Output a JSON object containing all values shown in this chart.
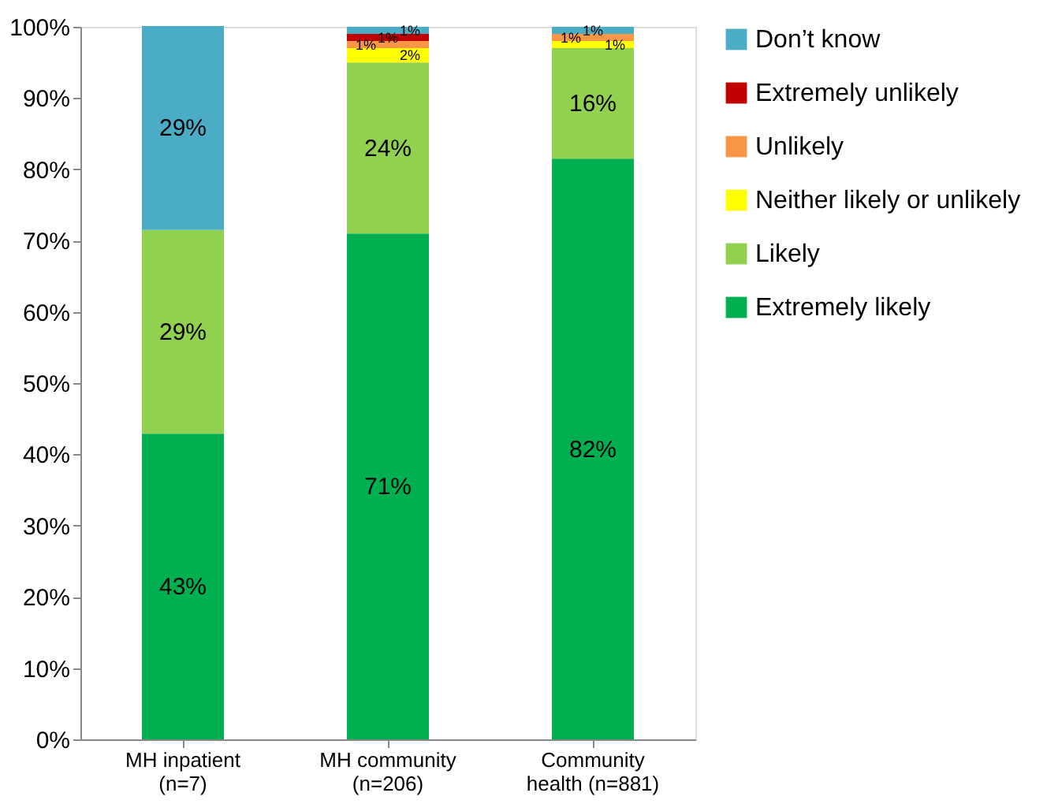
{
  "chart_data": {
    "type": "bar",
    "stacked": true,
    "legend": "right",
    "grid": false,
    "categories": [
      "MH inpatient\n(n=7)",
      "MH community\n(n=206)",
      "Community\nhealth (n=881)"
    ],
    "ylim": [
      0,
      100
    ],
    "yticks": [
      {
        "value": 0,
        "label": "0%"
      },
      {
        "value": 10,
        "label": "10%"
      },
      {
        "value": 20,
        "label": "20%"
      },
      {
        "value": 30,
        "label": "30%"
      },
      {
        "value": 40,
        "label": "40%"
      },
      {
        "value": 50,
        "label": "50%"
      },
      {
        "value": 60,
        "label": "60%"
      },
      {
        "value": 70,
        "label": "70%"
      },
      {
        "value": 80,
        "label": "80%"
      },
      {
        "value": 90,
        "label": "90%"
      },
      {
        "value": 100,
        "label": "100%"
      }
    ],
    "series": [
      {
        "name": "Extremely likely",
        "color": "#00b050",
        "values": [
          42.9,
          71,
          81.5
        ],
        "value_labels": [
          "43%",
          "71%",
          "82%"
        ]
      },
      {
        "name": "Likely",
        "color": "#92d050",
        "values": [
          28.6,
          24,
          15.5
        ],
        "value_labels": [
          "29%",
          "24%",
          "16%"
        ]
      },
      {
        "name": "Neither likely or unlikely",
        "color": "#ffff00",
        "values": [
          0,
          2,
          1
        ],
        "value_labels": [
          null,
          "2%",
          "1%"
        ]
      },
      {
        "name": "Unlikely",
        "color": "#f79646",
        "values": [
          0,
          1,
          1
        ],
        "value_labels": [
          null,
          "1%",
          "1%"
        ]
      },
      {
        "name": "Extremely unlikely",
        "color": "#c00000",
        "values": [
          0,
          1,
          0
        ],
        "value_labels": [
          null,
          "1%",
          null
        ]
      },
      {
        "name": "Don’t know",
        "color": "#4bacc6",
        "values": [
          28.6,
          1,
          1
        ],
        "value_labels": [
          "29%",
          "1%",
          "1%"
        ]
      }
    ]
  }
}
